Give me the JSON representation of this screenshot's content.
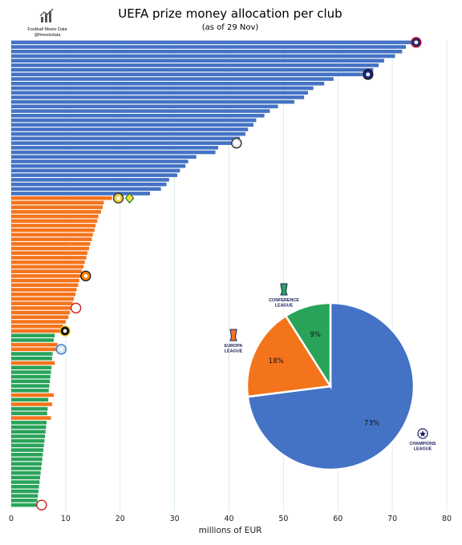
{
  "header": {
    "brand_name": "Football Meets Data",
    "brand_handle": "@fmeetsdata"
  },
  "chart_data": [
    {
      "type": "bar",
      "orientation": "horizontal",
      "title": "UEFA prize money allocation per club",
      "subtitle": "(as of 29 Nov)",
      "xlabel": "millions of EUR",
      "ylabel": "",
      "xlim": [
        0,
        80
      ],
      "xticks": [
        0,
        10,
        20,
        30,
        40,
        50,
        60,
        70,
        80
      ],
      "grid": "vertical",
      "series": [
        {
          "name": "Champions League",
          "color": "#4472c4",
          "values": [
            73.5,
            72.5,
            71.8,
            70.5,
            68.5,
            67.5,
            66.5,
            64.5,
            59.2,
            57.5,
            55.5,
            54.5,
            53.8,
            52.0,
            49.0,
            47.5,
            46.5,
            45.0,
            44.5,
            43.5,
            43.0,
            42.0,
            40.5,
            38.0,
            37.5,
            34.0,
            32.5,
            32.0,
            31.0,
            30.5,
            29.0,
            28.5,
            27.5,
            25.5
          ]
        },
        {
          "name": "Europa League",
          "color": "#f4741c",
          "values": [
            18.5,
            17.0,
            16.8,
            16.5,
            16.0,
            15.8,
            15.5,
            15.3,
            15.0,
            14.8,
            14.5,
            14.3,
            14.0,
            13.8,
            13.5,
            13.3,
            13.0,
            12.8,
            12.5,
            12.3,
            12.0,
            11.8,
            11.5,
            11.3,
            11.0,
            10.8,
            10.5,
            10.0,
            9.5,
            9.0,
            8.5,
            8.3,
            8.0,
            7.8,
            7.5,
            7.3
          ]
        },
        {
          "name": "Conference League",
          "color": "#29a35a",
          "values": [
            8.0,
            7.8,
            7.6,
            7.5,
            7.4,
            7.3,
            7.2,
            7.1,
            7.0,
            6.9,
            6.8,
            6.7,
            6.6,
            6.5,
            6.4,
            6.3,
            6.2,
            6.1,
            6.0,
            5.9,
            5.8,
            5.7,
            5.6,
            5.5,
            5.4,
            5.3,
            5.2,
            5.1,
            5.0,
            4.9,
            4.8,
            4.7,
            4.6,
            4.5,
            4.4,
            4.3
          ]
        }
      ],
      "row_order": [
        "C",
        "C",
        "C",
        "C",
        "C",
        "C",
        "C",
        "C",
        "C",
        "C",
        "C",
        "C",
        "C",
        "C",
        "C",
        "C",
        "C",
        "C",
        "C",
        "C",
        "C",
        "C",
        "C",
        "C",
        "C",
        "C",
        "C",
        "C",
        "C",
        "C",
        "C",
        "C",
        "C",
        "C",
        "E",
        "E",
        "E",
        "E",
        "E",
        "E",
        "E",
        "E",
        "E",
        "E",
        "E",
        "E",
        "E",
        "E",
        "E",
        "E",
        "E",
        "E",
        "E",
        "E",
        "E",
        "E",
        "E",
        "E",
        "E",
        "E",
        "E",
        "E",
        "E",
        "E",
        "K",
        "K",
        "E",
        "E",
        "K",
        "K",
        "E",
        "K",
        "K",
        "K",
        "K",
        "K",
        "K",
        "E",
        "K",
        "E",
        "K",
        "K",
        "E",
        "K",
        "K",
        "K",
        "K",
        "K",
        "K",
        "K",
        "K",
        "K",
        "K",
        "K",
        "K",
        "K",
        "K",
        "K",
        "K",
        "K",
        "K",
        "K"
      ]
    },
    {
      "type": "pie",
      "slices": [
        {
          "label": "CHAMPIONS LEAGUE",
          "value": 73,
          "display": "73%",
          "color": "#4472c4"
        },
        {
          "label": "EUROPA LEAGUE",
          "value": 18,
          "display": "18%",
          "color": "#f4741c"
        },
        {
          "label": "CONFERENCE LEAGUE",
          "value": 9,
          "display": "9%",
          "color": "#29a35a"
        }
      ]
    }
  ]
}
